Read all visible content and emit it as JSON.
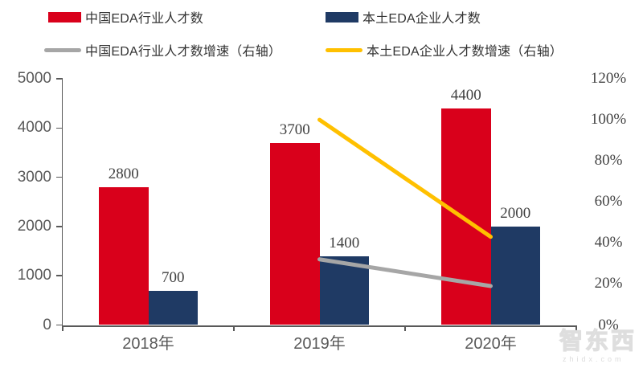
{
  "legend": {
    "items": [
      {
        "label": "中国EDA行业人才数",
        "color": "#d9001b",
        "type": "bar"
      },
      {
        "label": "本土EDA企业人才数",
        "color": "#1f3a64",
        "type": "bar"
      },
      {
        "label": "中国EDA行业人才数增速（右轴）",
        "color": "#a6a6a6",
        "type": "line"
      },
      {
        "label": "本土EDA企业人才数增速（右轴）",
        "color": "#ffc000",
        "type": "line"
      }
    ]
  },
  "chart_data": {
    "type": "bar",
    "subtype": "grouped bars with line overlay (dual axis)",
    "title": "",
    "categories": [
      "2018年",
      "2019年",
      "2020年"
    ],
    "bar_series": [
      {
        "name": "中国EDA行业人才数",
        "color": "#d9001b",
        "axis": "left",
        "values": [
          2800,
          3700,
          4400
        ],
        "data_labels": [
          "2800",
          "3700",
          "4400"
        ]
      },
      {
        "name": "本土EDA企业人才数",
        "color": "#1f3a64",
        "axis": "left",
        "values": [
          700,
          1400,
          2000
        ],
        "data_labels": [
          "700",
          "1400",
          "2000"
        ]
      }
    ],
    "line_series": [
      {
        "name": "中国EDA行业人才数增速（右轴）",
        "color": "#a6a6a6",
        "axis": "right",
        "values_pct": [
          null,
          32,
          19
        ]
      },
      {
        "name": "本土EDA企业人才数增速（右轴）",
        "color": "#ffc000",
        "axis": "right",
        "values_pct": [
          null,
          100,
          43
        ]
      }
    ],
    "left_axis": {
      "min": 0,
      "max": 5000,
      "step": 1000,
      "ticks": [
        "0",
        "1000",
        "2000",
        "3000",
        "4000",
        "5000"
      ]
    },
    "right_axis": {
      "min": 0,
      "max": 120,
      "step": 20,
      "ticks": [
        "0%",
        "20%",
        "40%",
        "60%",
        "80%",
        "100%",
        "120%"
      ]
    },
    "grid": false,
    "legend_position": "top"
  },
  "watermark": {
    "logo": "智东西",
    "domain": "zhidx.com"
  }
}
